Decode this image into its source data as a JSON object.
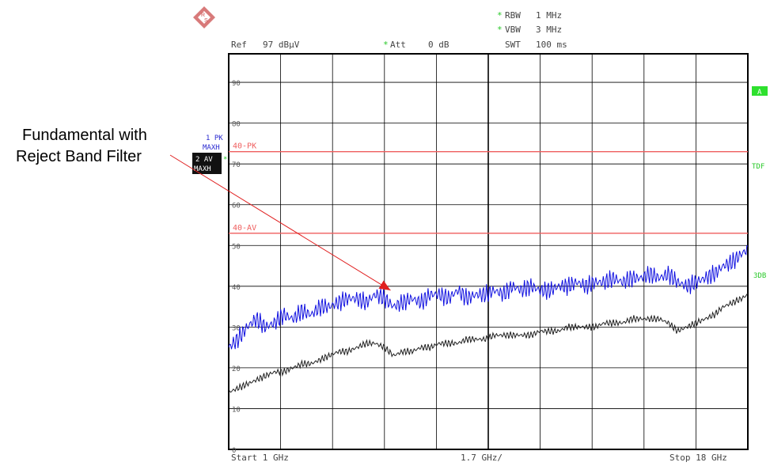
{
  "header": {
    "ref_label": "Ref",
    "ref_value": "97 dBµV",
    "att_label": "Att",
    "att_value": "0 dB",
    "rbw_label": "RBW",
    "rbw_value": "1 MHz",
    "vbw_label": "VBW",
    "vbw_value": "3 MHz",
    "swt_label": "SWT",
    "swt_value": "100 ms",
    "setting_mark": "*"
  },
  "annotation": {
    "line1": "Fundamental with",
    "line2": "Reject Band Filter",
    "target_x_ghz": 6.3,
    "target_y_dbuv": 39
  },
  "trace_labels": {
    "t1_a": "1 PK",
    "t1_b": "MAXH",
    "t2_a": "2 AV",
    "t2_b": "MAXH"
  },
  "right_labels": {
    "a": "A",
    "tdf": "TDF",
    "db3": "3DB"
  },
  "footer": {
    "start": "Start 1 GHz",
    "div": "1.7 GHz/",
    "stop": "Stop 18 GHz"
  },
  "colors": {
    "peak_trace": "#1010e0",
    "avg_trace": "#202020",
    "limit_line": "#ef5e5e",
    "grid": "#000000",
    "green_mark": "#28c828",
    "label_blue": "#2a2ad0",
    "arrow": "#e02020"
  },
  "chart_data": {
    "type": "line",
    "title": "",
    "xlabel": "",
    "ylabel": "",
    "xlim": [
      1,
      18
    ],
    "ylim": [
      0,
      97
    ],
    "x_unit": "GHz",
    "y_unit": "dBµV",
    "y_ticks": [
      0,
      10,
      20,
      30,
      40,
      50,
      60,
      70,
      80,
      90
    ],
    "grid": true,
    "limit_lines": [
      {
        "name": "40-PK",
        "value": 73
      },
      {
        "name": "40-AV",
        "value": 53
      }
    ],
    "series": [
      {
        "name": "1 PK MAXH",
        "x": [
          1.0,
          1.3,
          1.6,
          1.9,
          2.2,
          2.5,
          2.8,
          3.1,
          3.4,
          3.7,
          4.0,
          4.3,
          4.6,
          4.9,
          5.2,
          5.5,
          5.8,
          6.1,
          6.4,
          6.7,
          7.0,
          7.3,
          7.6,
          7.9,
          8.2,
          8.5,
          8.8,
          9.1,
          9.4,
          9.7,
          10.0,
          10.3,
          10.6,
          10.9,
          11.2,
          11.5,
          11.8,
          12.1,
          12.4,
          12.7,
          13.0,
          13.3,
          13.6,
          13.9,
          14.2,
          14.5,
          14.8,
          15.1,
          15.4,
          15.7,
          16.0,
          16.3,
          16.6,
          16.9,
          17.2,
          17.5,
          17.8,
          18.0
        ],
        "values": [
          25,
          27,
          30,
          32,
          30,
          31,
          33,
          32,
          34,
          33,
          35,
          35,
          36,
          37,
          37,
          36,
          38,
          37,
          35,
          36,
          37,
          36,
          38,
          38,
          37,
          39,
          37,
          38,
          38,
          39,
          38,
          40,
          39,
          40,
          39,
          39,
          40,
          40,
          41,
          40,
          41,
          41,
          42,
          41,
          42,
          42,
          43,
          42,
          43,
          41,
          40,
          41,
          42,
          43,
          45,
          46,
          48,
          49
        ]
      },
      {
        "name": "2 AV MAXH",
        "x": [
          1.0,
          1.3,
          1.6,
          1.9,
          2.2,
          2.5,
          2.8,
          3.1,
          3.4,
          3.7,
          4.0,
          4.3,
          4.6,
          4.9,
          5.2,
          5.5,
          5.8,
          6.1,
          6.4,
          6.7,
          7.0,
          7.3,
          7.6,
          7.9,
          8.2,
          8.5,
          8.8,
          9.1,
          9.4,
          9.7,
          10.0,
          10.3,
          10.6,
          10.9,
          11.2,
          11.5,
          11.8,
          12.1,
          12.4,
          12.7,
          13.0,
          13.3,
          13.6,
          13.9,
          14.2,
          14.5,
          14.8,
          15.1,
          15.4,
          15.7,
          16.0,
          16.3,
          16.6,
          16.9,
          17.2,
          17.5,
          17.8,
          18.0
        ],
        "values": [
          14,
          15,
          16,
          17,
          18,
          19,
          19,
          20,
          21,
          21,
          22,
          23,
          24,
          24,
          25,
          26,
          26,
          25,
          23,
          24,
          24,
          25,
          25,
          26,
          26,
          26,
          27,
          27,
          27,
          28,
          28,
          28,
          28,
          28,
          29,
          29,
          29,
          30,
          30,
          30,
          30,
          31,
          31,
          31,
          32,
          32,
          32,
          32,
          31,
          29,
          30,
          31,
          32,
          33,
          35,
          36,
          37,
          38
        ]
      }
    ]
  }
}
